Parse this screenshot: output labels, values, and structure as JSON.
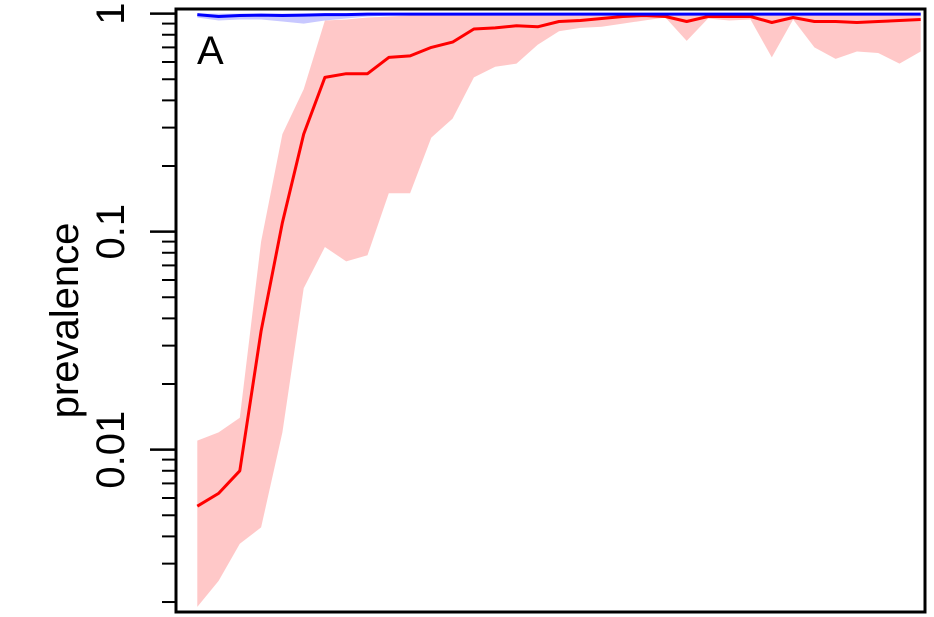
{
  "chart_data": {
    "type": "line",
    "title": "",
    "panel_label": "A",
    "xlabel": "",
    "ylabel": "prevalence",
    "yscale": "log",
    "ylim": [
      0.0018,
      1.05
    ],
    "y_ticks": [
      {
        "value": 1,
        "label": "1"
      },
      {
        "value": 0.1,
        "label": "0.1"
      },
      {
        "value": 0.01,
        "label": "0.01"
      }
    ],
    "y_minor_ticks": [
      0.9,
      0.8,
      0.7,
      0.6,
      0.5,
      0.4,
      0.3,
      0.2,
      0.09,
      0.08,
      0.07,
      0.06,
      0.05,
      0.04,
      0.03,
      0.02,
      0.009,
      0.008,
      0.007,
      0.006,
      0.005,
      0.004,
      0.003,
      0.002
    ],
    "x_ticks_shown": false,
    "grid": false,
    "x": [
      1,
      2,
      3,
      4,
      5,
      6,
      7,
      8,
      9,
      10,
      11,
      12,
      13,
      14,
      15,
      16,
      17,
      18,
      19,
      20,
      21,
      22,
      23,
      24,
      25,
      26,
      27,
      28,
      29,
      30,
      31,
      32,
      33,
      34,
      35
    ],
    "series": [
      {
        "color": "#ff0000",
        "band_color": "#ffc8c8",
        "values": [
          0.0055,
          0.0063,
          0.008,
          0.035,
          0.11,
          0.28,
          0.51,
          0.53,
          0.53,
          0.63,
          0.64,
          0.7,
          0.74,
          0.85,
          0.86,
          0.88,
          0.87,
          0.92,
          0.93,
          0.95,
          0.97,
          0.98,
          0.97,
          0.92,
          0.97,
          0.97,
          0.97,
          0.91,
          0.96,
          0.92,
          0.92,
          0.91,
          0.92,
          0.93,
          0.94
        ],
        "lower": [
          0.0019,
          0.0025,
          0.0037,
          0.0044,
          0.012,
          0.055,
          0.085,
          0.073,
          0.078,
          0.15,
          0.15,
          0.27,
          0.33,
          0.51,
          0.57,
          0.59,
          0.72,
          0.83,
          0.86,
          0.87,
          0.9,
          0.93,
          0.96,
          0.75,
          0.95,
          0.93,
          0.94,
          0.63,
          0.94,
          0.7,
          0.62,
          0.67,
          0.66,
          0.59,
          0.67
        ],
        "upper": [
          0.011,
          0.012,
          0.014,
          0.09,
          0.28,
          0.45,
          0.93,
          0.94,
          0.96,
          0.97,
          0.98,
          0.98,
          0.98,
          0.98,
          0.98,
          0.98,
          0.99,
          0.99,
          0.99,
          0.99,
          0.99,
          0.99,
          0.99,
          0.99,
          0.99,
          0.99,
          0.99,
          0.99,
          0.99,
          0.99,
          0.99,
          0.99,
          0.99,
          0.99,
          0.99
        ]
      },
      {
        "color": "#0000ff",
        "band_color": "#c8c8ff",
        "values": [
          0.99,
          0.97,
          0.98,
          0.985,
          0.98,
          0.985,
          0.99,
          0.99,
          0.995,
          0.995,
          0.995,
          0.995,
          0.995,
          0.995,
          0.995,
          0.995,
          0.995,
          0.995,
          0.995,
          0.995,
          0.995,
          0.995,
          0.995,
          0.995,
          0.995,
          0.995,
          0.995,
          0.995,
          0.995,
          0.995,
          0.995,
          0.995,
          0.995,
          0.995,
          0.995
        ],
        "lower": [
          0.96,
          0.93,
          0.94,
          0.94,
          0.92,
          0.9,
          0.93,
          0.95,
          0.97,
          0.98,
          0.98,
          0.98,
          0.98,
          0.98,
          0.98,
          0.98,
          0.98,
          0.98,
          0.98,
          0.98,
          0.98,
          0.98,
          0.98,
          0.98,
          0.98,
          0.98,
          0.98,
          0.98,
          0.98,
          0.98,
          0.98,
          0.98,
          0.98,
          0.98,
          0.98
        ],
        "upper": [
          1,
          1,
          1,
          1,
          1,
          1,
          1,
          1,
          1,
          1,
          1,
          1,
          1,
          1,
          1,
          1,
          1,
          1,
          1,
          1,
          1,
          1,
          1,
          1,
          1,
          1,
          1,
          1,
          1,
          1,
          1,
          1,
          1,
          1,
          1
        ]
      }
    ]
  }
}
